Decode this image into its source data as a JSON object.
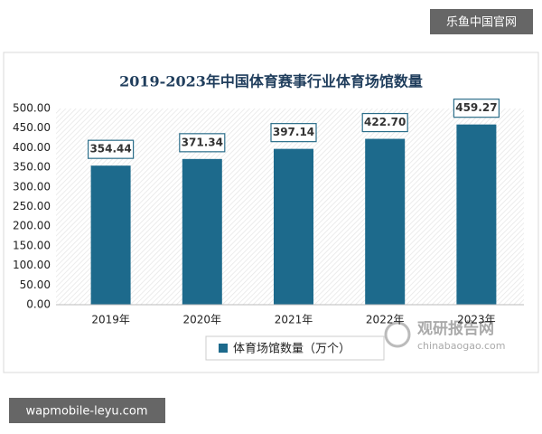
{
  "chart_data": {
    "type": "bar",
    "title": "2019-2023年中国体育赛事行业体育场馆数量",
    "categories": [
      "2019年",
      "2020年",
      "2021年",
      "2022年",
      "2023年"
    ],
    "series": [
      {
        "name": "体育场馆数量（万个）",
        "color": "#1d6a8c",
        "values": [
          354.44,
          371.34,
          397.14,
          422.7,
          459.27
        ],
        "value_labels": [
          "354.44",
          "371.34",
          "397.14",
          "422.70",
          "459.27"
        ]
      }
    ],
    "ylim": [
      0,
      500
    ],
    "yticks": [
      {
        "value": 0,
        "label": "0.00"
      },
      {
        "value": 50,
        "label": "50.00"
      },
      {
        "value": 100,
        "label": "100.00"
      },
      {
        "value": 150,
        "label": "150.00"
      },
      {
        "value": 200,
        "label": "200.00"
      },
      {
        "value": 250,
        "label": "250.00"
      },
      {
        "value": 300,
        "label": "300.00"
      },
      {
        "value": 350,
        "label": "350.00"
      },
      {
        "value": 400,
        "label": "400.00"
      },
      {
        "value": 450,
        "label": "450.00"
      },
      {
        "value": 500,
        "label": "500.00"
      }
    ],
    "legend": "bottom"
  },
  "watermarks": {
    "top_right": "乐鱼中国官网",
    "bottom_left": "wapmobile-leyu.com",
    "logo_name": "观研报告网",
    "logo_url": "chinabaogao.com"
  }
}
